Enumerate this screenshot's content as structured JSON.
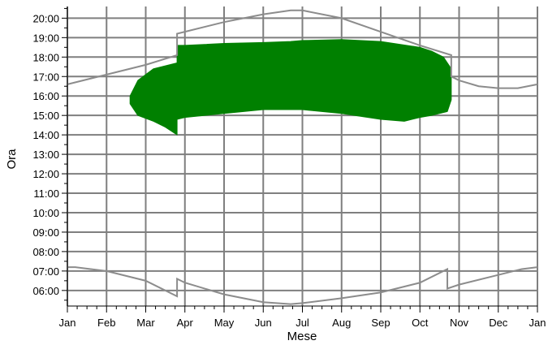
{
  "chart_data": {
    "type": "area",
    "title": "",
    "xlabel": "Mese",
    "ylabel": "Ora",
    "x_tick_labels": [
      "Jan",
      "Feb",
      "Mar",
      "Apr",
      "May",
      "Jun",
      "Jul",
      "Aug",
      "Sep",
      "Oct",
      "Nov",
      "Dec",
      "Jan"
    ],
    "y_tick_labels": [
      "06:00",
      "07:00",
      "08:00",
      "09:00",
      "10:00",
      "11:00",
      "12:00",
      "13:00",
      "14:00",
      "15:00",
      "16:00",
      "17:00",
      "18:00",
      "19:00",
      "20:00"
    ],
    "xlim": [
      0,
      12
    ],
    "ylim": [
      5.2,
      20.6
    ],
    "grid": true,
    "legend": "none",
    "colors": {
      "area": "#008000",
      "curves": "#8c8c8c",
      "grid": "#7f7f7f"
    },
    "series": [
      {
        "type": "line",
        "x": [
          0,
          1,
          2,
          2.8,
          2.8,
          3,
          4,
          5,
          5.7,
          6,
          7,
          8,
          9,
          9.8,
          9.8,
          10,
          10.5,
          11,
          11.5,
          12
        ],
        "y": [
          16.6,
          17.1,
          17.6,
          18.1,
          19.2,
          19.3,
          19.8,
          20.2,
          20.4,
          20.4,
          20.0,
          19.3,
          18.6,
          18.1,
          17.0,
          16.8,
          16.5,
          16.4,
          16.4,
          16.6
        ]
      },
      {
        "type": "line",
        "x": [
          0,
          0.2,
          1,
          2,
          2.8,
          2.8,
          3,
          4,
          5,
          5.7,
          6,
          7,
          8,
          9,
          9.7,
          9.7,
          10,
          11,
          11.6,
          12
        ],
        "y": [
          7.2,
          7.2,
          7.0,
          6.5,
          5.7,
          6.6,
          6.4,
          5.8,
          5.4,
          5.3,
          5.35,
          5.6,
          5.9,
          6.4,
          7.1,
          6.1,
          6.3,
          6.8,
          7.1,
          7.2
        ]
      },
      {
        "type": "area",
        "upper_x": [
          1.6,
          1.8,
          2.2,
          2.8,
          2.8,
          3,
          4,
          5,
          5.7,
          6,
          7,
          8,
          9,
          9.3,
          9.6,
          9.8
        ],
        "upper_y": [
          16.0,
          16.8,
          17.4,
          17.7,
          18.6,
          18.6,
          18.7,
          18.75,
          18.8,
          18.85,
          18.9,
          18.8,
          18.5,
          18.3,
          18.0,
          17.4
        ],
        "lower_x": [
          9.8,
          9.7,
          9.3,
          9,
          8.6,
          8,
          7,
          6,
          5,
          4,
          3,
          2.8,
          2.8,
          2.5,
          2.2,
          1.8,
          1.6
        ],
        "lower_y": [
          15.8,
          15.2,
          15.0,
          14.9,
          14.7,
          14.8,
          15.1,
          15.3,
          15.3,
          15.1,
          14.9,
          14.8,
          14.0,
          14.4,
          14.7,
          15.0,
          15.6
        ]
      }
    ]
  }
}
